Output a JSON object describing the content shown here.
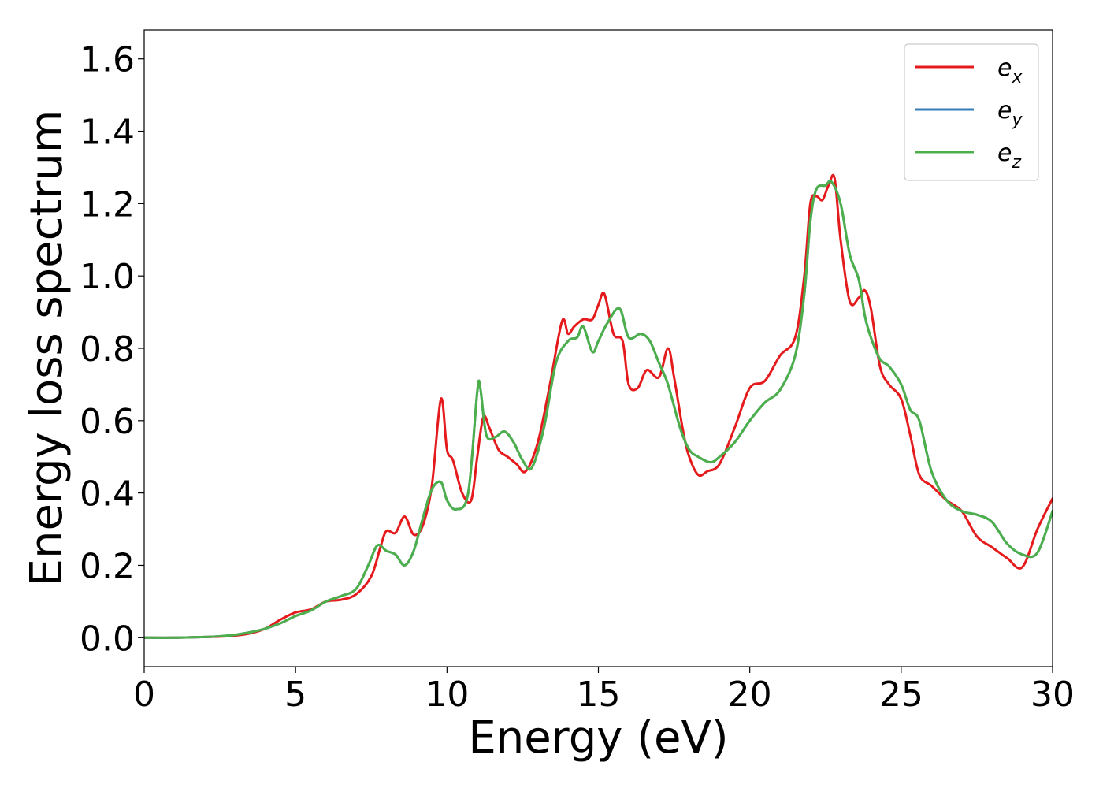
{
  "chart_data": {
    "type": "line",
    "title": "",
    "xlabel": "Energy (eV)",
    "ylabel": "Energy loss spectrum",
    "xlim": [
      0,
      30
    ],
    "ylim": [
      -0.08,
      1.68
    ],
    "xticks": [
      0,
      5,
      10,
      15,
      20,
      25,
      30
    ],
    "xtick_labels": [
      "0",
      "5",
      "10",
      "15",
      "20",
      "25",
      "30"
    ],
    "yticks": [
      0.0,
      0.2,
      0.4,
      0.6,
      0.8,
      1.0,
      1.2,
      1.4,
      1.6
    ],
    "ytick_labels": [
      "0.0",
      "0.2",
      "0.4",
      "0.6",
      "0.8",
      "1.0",
      "1.2",
      "1.4",
      "1.6"
    ],
    "grid": false,
    "legend_position": "top-right",
    "series": [
      {
        "name": "e_x",
        "legend_main": "e",
        "legend_sub": "x",
        "color": "#e41a1c",
        "x": [
          0,
          1,
          2,
          2.5,
          3,
          3.5,
          4,
          4.5,
          5,
          5.5,
          6,
          6.5,
          7,
          7.5,
          7.8,
          8,
          8.3,
          8.6,
          8.9,
          9.2,
          9.5,
          9.8,
          10,
          10.2,
          10.5,
          10.8,
          11,
          11.2,
          11.4,
          11.7,
          12,
          12.3,
          12.6,
          13,
          13.4,
          13.8,
          14,
          14.2,
          14.5,
          14.8,
          15,
          15.2,
          15.5,
          15.8,
          16,
          16.3,
          16.6,
          17,
          17.3,
          17.5,
          17.8,
          18,
          18.3,
          18.6,
          19,
          19.5,
          20,
          20.5,
          21,
          21.5,
          21.8,
          22,
          22.2,
          22.4,
          22.6,
          22.8,
          23,
          23.3,
          23.6,
          23.8,
          24,
          24.3,
          24.6,
          25,
          25.3,
          25.6,
          26,
          26.5,
          27,
          27.5,
          28,
          28.5,
          29,
          29.5,
          30
        ],
        "values": [
          0.0,
          0.0,
          0.002,
          0.003,
          0.006,
          0.012,
          0.025,
          0.05,
          0.07,
          0.078,
          0.1,
          0.105,
          0.12,
          0.17,
          0.25,
          0.295,
          0.29,
          0.335,
          0.285,
          0.31,
          0.42,
          0.66,
          0.52,
          0.49,
          0.4,
          0.38,
          0.5,
          0.61,
          0.58,
          0.52,
          0.5,
          0.48,
          0.46,
          0.54,
          0.7,
          0.875,
          0.84,
          0.86,
          0.88,
          0.88,
          0.92,
          0.95,
          0.84,
          0.82,
          0.7,
          0.69,
          0.74,
          0.72,
          0.8,
          0.72,
          0.57,
          0.5,
          0.45,
          0.46,
          0.48,
          0.58,
          0.69,
          0.71,
          0.78,
          0.83,
          1.0,
          1.2,
          1.22,
          1.21,
          1.25,
          1.27,
          1.1,
          0.93,
          0.94,
          0.96,
          0.91,
          0.75,
          0.7,
          0.66,
          0.56,
          0.45,
          0.42,
          0.38,
          0.35,
          0.28,
          0.25,
          0.22,
          0.195,
          0.3,
          0.385
        ]
      },
      {
        "name": "e_y",
        "legend_main": "e",
        "legend_sub": "y",
        "color": "#377eb8",
        "x": [
          0,
          1,
          2,
          2.5,
          3,
          3.5,
          4,
          4.5,
          5,
          5.5,
          6,
          6.5,
          7,
          7.4,
          7.7,
          8,
          8.3,
          8.6,
          8.9,
          9.2,
          9.5,
          9.8,
          10,
          10.3,
          10.7,
          11,
          11.1,
          11.3,
          11.6,
          11.9,
          12.2,
          12.5,
          12.8,
          13.2,
          13.6,
          14,
          14.3,
          14.5,
          14.8,
          15,
          15.3,
          15.7,
          16,
          16.4,
          16.7,
          17,
          17.3,
          17.7,
          18,
          18.3,
          18.7,
          19,
          19.5,
          20,
          20.5,
          21,
          21.5,
          21.8,
          22,
          22.2,
          22.5,
          22.7,
          23,
          23.3,
          23.6,
          23.8,
          24,
          24.3,
          24.6,
          25,
          25.3,
          25.6,
          26,
          26.5,
          27,
          27.5,
          28,
          28.5,
          29,
          29.5,
          30
        ],
        "values": [
          0.0,
          0.0,
          0.002,
          0.004,
          0.008,
          0.015,
          0.025,
          0.04,
          0.06,
          0.075,
          0.1,
          0.115,
          0.135,
          0.2,
          0.255,
          0.24,
          0.23,
          0.2,
          0.24,
          0.33,
          0.41,
          0.43,
          0.38,
          0.355,
          0.4,
          0.68,
          0.69,
          0.56,
          0.555,
          0.57,
          0.54,
          0.49,
          0.47,
          0.58,
          0.76,
          0.82,
          0.83,
          0.86,
          0.79,
          0.82,
          0.87,
          0.91,
          0.83,
          0.84,
          0.82,
          0.76,
          0.7,
          0.58,
          0.52,
          0.5,
          0.485,
          0.5,
          0.54,
          0.6,
          0.65,
          0.685,
          0.78,
          0.95,
          1.15,
          1.24,
          1.25,
          1.26,
          1.2,
          1.06,
          0.99,
          0.89,
          0.83,
          0.77,
          0.75,
          0.7,
          0.63,
          0.6,
          0.46,
          0.38,
          0.35,
          0.34,
          0.32,
          0.26,
          0.23,
          0.235,
          0.35
        ]
      },
      {
        "name": "e_z",
        "legend_main": "e",
        "legend_sub": "z",
        "color": "#4daf4a",
        "x": [
          0,
          1,
          2,
          2.5,
          3,
          3.5,
          4,
          4.5,
          5,
          5.5,
          6,
          6.5,
          7,
          7.4,
          7.7,
          8,
          8.3,
          8.6,
          8.9,
          9.2,
          9.5,
          9.8,
          10,
          10.3,
          10.7,
          11,
          11.1,
          11.3,
          11.6,
          11.9,
          12.2,
          12.5,
          12.8,
          13.2,
          13.6,
          14,
          14.3,
          14.5,
          14.8,
          15,
          15.3,
          15.7,
          16,
          16.4,
          16.7,
          17,
          17.3,
          17.7,
          18,
          18.3,
          18.7,
          19,
          19.5,
          20,
          20.5,
          21,
          21.5,
          21.8,
          22,
          22.2,
          22.5,
          22.7,
          23,
          23.3,
          23.6,
          23.8,
          24,
          24.3,
          24.6,
          25,
          25.3,
          25.6,
          26,
          26.5,
          27,
          27.5,
          28,
          28.5,
          29,
          29.5,
          30
        ],
        "values": [
          0.0,
          0.0,
          0.002,
          0.004,
          0.008,
          0.015,
          0.025,
          0.04,
          0.06,
          0.075,
          0.1,
          0.115,
          0.135,
          0.2,
          0.255,
          0.24,
          0.23,
          0.2,
          0.24,
          0.33,
          0.41,
          0.43,
          0.38,
          0.355,
          0.4,
          0.68,
          0.69,
          0.56,
          0.555,
          0.57,
          0.54,
          0.49,
          0.47,
          0.58,
          0.76,
          0.82,
          0.83,
          0.86,
          0.79,
          0.82,
          0.87,
          0.91,
          0.83,
          0.84,
          0.82,
          0.76,
          0.7,
          0.58,
          0.52,
          0.5,
          0.485,
          0.5,
          0.54,
          0.6,
          0.65,
          0.685,
          0.78,
          0.95,
          1.15,
          1.24,
          1.25,
          1.26,
          1.2,
          1.06,
          0.99,
          0.89,
          0.83,
          0.77,
          0.75,
          0.7,
          0.63,
          0.6,
          0.46,
          0.38,
          0.35,
          0.34,
          0.32,
          0.26,
          0.23,
          0.235,
          0.35
        ]
      }
    ]
  }
}
